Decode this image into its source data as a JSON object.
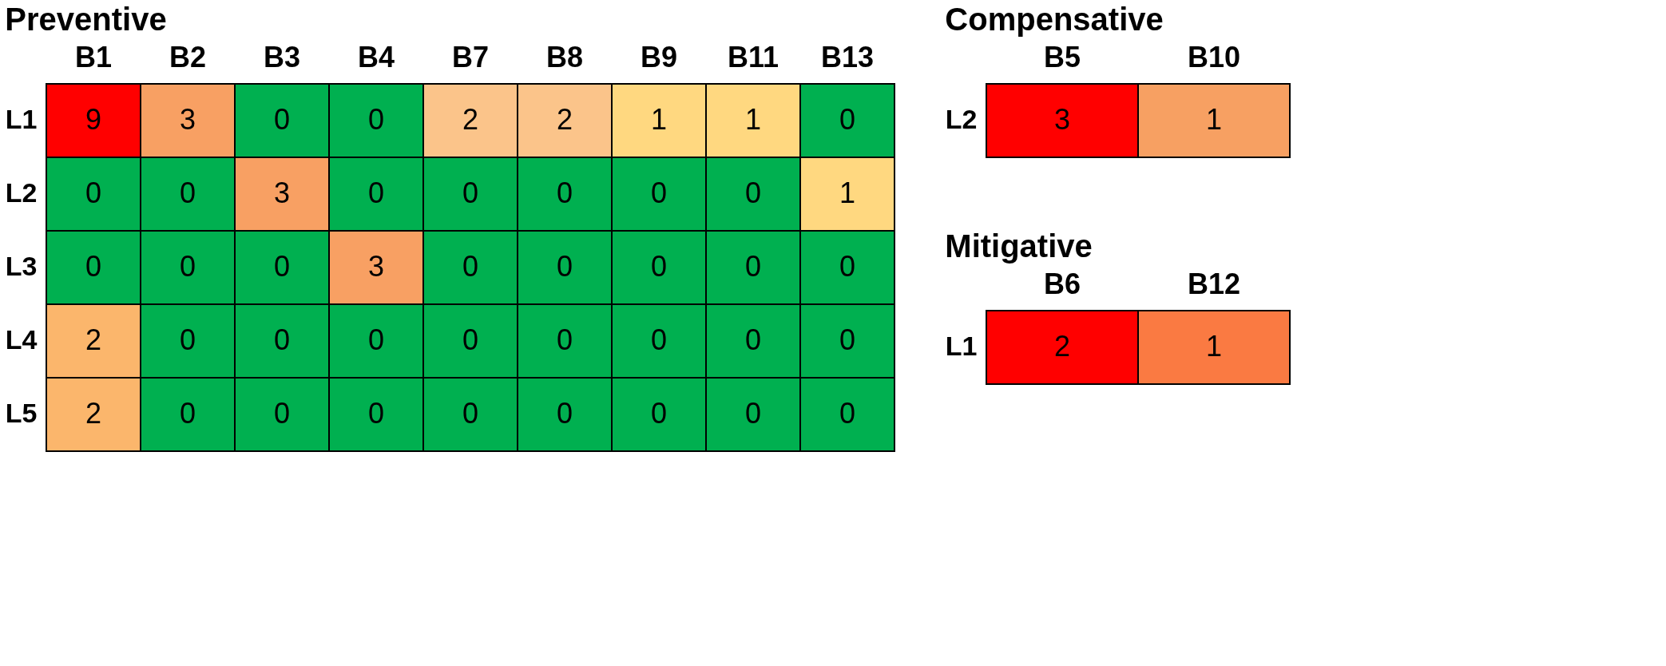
{
  "chart_data": [
    {
      "type": "heatmap",
      "title": "Preventive",
      "categories": [
        "B1",
        "B2",
        "B3",
        "B4",
        "B7",
        "B8",
        "B9",
        "B11",
        "B13"
      ],
      "y_categories": [
        "L1",
        "L2",
        "L3",
        "L4",
        "L5"
      ],
      "data_labels": true,
      "cells": [
        [
          9,
          3,
          0,
          0,
          2,
          2,
          1,
          1,
          0
        ],
        [
          0,
          0,
          3,
          0,
          0,
          0,
          0,
          0,
          1
        ],
        [
          0,
          0,
          0,
          3,
          0,
          0,
          0,
          0,
          0
        ],
        [
          2,
          0,
          0,
          0,
          0,
          0,
          0,
          0,
          0
        ],
        [
          2,
          0,
          0,
          0,
          0,
          0,
          0,
          0,
          0
        ]
      ],
      "colors": [
        [
          "#ff0000",
          "#f8a063",
          "#00b050",
          "#00b050",
          "#fbc48a",
          "#fbc48a",
          "#ffd880",
          "#ffd880",
          "#00b050"
        ],
        [
          "#00b050",
          "#00b050",
          "#f8a063",
          "#00b050",
          "#00b050",
          "#00b050",
          "#00b050",
          "#00b050",
          "#ffd880"
        ],
        [
          "#00b050",
          "#00b050",
          "#00b050",
          "#f8a063",
          "#00b050",
          "#00b050",
          "#00b050",
          "#00b050",
          "#00b050"
        ],
        [
          "#fbb66c",
          "#00b050",
          "#00b050",
          "#00b050",
          "#00b050",
          "#00b050",
          "#00b050",
          "#00b050",
          "#00b050"
        ],
        [
          "#fbb66c",
          "#00b050",
          "#00b050",
          "#00b050",
          "#00b050",
          "#00b050",
          "#00b050",
          "#00b050",
          "#00b050"
        ]
      ]
    },
    {
      "type": "heatmap",
      "title": "Compensative",
      "categories": [
        "B5",
        "B10"
      ],
      "y_categories": [
        "L2"
      ],
      "data_labels": true,
      "cells": [
        [
          3,
          1
        ]
      ],
      "colors": [
        [
          "#ff0000",
          "#f7a062"
        ]
      ]
    },
    {
      "type": "heatmap",
      "title": "Mitigative",
      "categories": [
        "B6",
        "B12"
      ],
      "y_categories": [
        "L1"
      ],
      "data_labels": true,
      "cells": [
        [
          2,
          1
        ]
      ],
      "colors": [
        [
          "#ff0000",
          "#fa7a42"
        ]
      ]
    }
  ]
}
